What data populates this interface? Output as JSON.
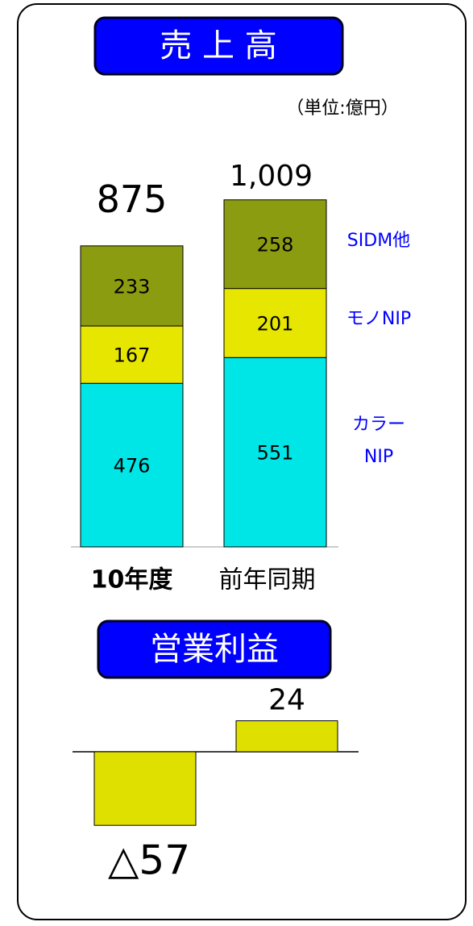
{
  "chart_data": [
    {
      "type": "stacked_bar",
      "title": "売 上 高",
      "subtitle": "（単位:億円）",
      "categories": [
        "10年度",
        "前年同期"
      ],
      "series": [
        {
          "name": "カラー\nNIP",
          "color": "#00e6e6",
          "values": [
            476,
            551
          ]
        },
        {
          "name": "モノNIP",
          "color": "#e6e600",
          "values": [
            167,
            201
          ]
        },
        {
          "name": "SIDM他",
          "color": "#8c9c10",
          "values": [
            233,
            258
          ]
        }
      ],
      "totals": [
        875,
        1009
      ],
      "total_labels": [
        "875",
        "1,009"
      ]
    },
    {
      "type": "bar",
      "title": "営業利益",
      "values": [
        -57,
        24
      ],
      "value_labels": [
        "△57",
        "24"
      ],
      "color": "#e0e000"
    }
  ]
}
